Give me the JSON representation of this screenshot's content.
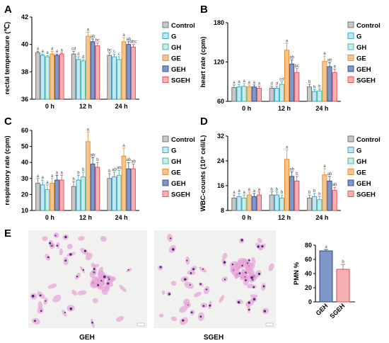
{
  "legend": [
    "Control",
    "G",
    "GH",
    "GE",
    "GEH",
    "SGEH"
  ],
  "colors": {
    "fills": [
      "#c8c8c8",
      "#bfe8f4",
      "#c8ece6",
      "#f7c48e",
      "#7f97c8",
      "#f5b0b3"
    ],
    "strokes": [
      "#6d6d6d",
      "#2aa2c8",
      "#3bb3a2",
      "#e48a2c",
      "#2f4a8c",
      "#e04a55"
    ]
  },
  "panels": [
    {
      "letter": "A"
    },
    {
      "letter": "B"
    },
    {
      "letter": "C"
    },
    {
      "letter": "D"
    },
    {
      "letter": "E"
    }
  ],
  "micrographs": {
    "left_label": "GEH",
    "right_label": "SGEH"
  },
  "chart_data": [
    {
      "type": "bar",
      "panel": "A",
      "ylabel": "rectal temperature (℃)",
      "ylim": [
        36,
        42
      ],
      "yticks": [
        36,
        38,
        40,
        42
      ],
      "categories": [
        "0 h",
        "12 h",
        "24 h"
      ],
      "series": [
        {
          "name": "Control",
          "values": [
            39.4,
            39.3,
            39.2
          ],
          "errors": [
            0.1,
            0.2,
            0.2
          ],
          "labels": [
            "a",
            "cd",
            "bc"
          ]
        },
        {
          "name": "G",
          "values": [
            39.2,
            38.9,
            39.1
          ],
          "errors": [
            0.1,
            0.2,
            0.2
          ],
          "labels": [
            "a",
            "d",
            "c"
          ]
        },
        {
          "name": "GH",
          "values": [
            39.1,
            38.8,
            38.9
          ],
          "errors": [
            0.1,
            0.1,
            0.2
          ],
          "labels": [
            "a",
            "d",
            "c"
          ]
        },
        {
          "name": "GE",
          "values": [
            39.3,
            40.6,
            40.2
          ],
          "errors": [
            0.2,
            0.3,
            0.3
          ],
          "labels": [
            "a",
            "a",
            "a"
          ]
        },
        {
          "name": "GEH",
          "values": [
            39.2,
            40.2,
            40.0
          ],
          "errors": [
            0.1,
            0.2,
            0.2
          ],
          "labels": [
            "a",
            "ab",
            "ab"
          ]
        },
        {
          "name": "SGEH",
          "values": [
            39.3,
            39.9,
            39.8
          ],
          "errors": [
            0.1,
            0.2,
            0.2
          ],
          "labels": [
            "a",
            "bc",
            "abc"
          ]
        }
      ]
    },
    {
      "type": "bar",
      "panel": "B",
      "ylabel": "heart rate (cpm)",
      "ylim": [
        60,
        180
      ],
      "yticks": [
        60,
        120,
        180
      ],
      "categories": [
        "0 h",
        "12 h",
        "24 h"
      ],
      "series": [
        {
          "name": "Control",
          "values": [
            81,
            80,
            82
          ],
          "errors": [
            4,
            3,
            4
          ],
          "labels": [
            "a",
            "d",
            "b"
          ]
        },
        {
          "name": "G",
          "values": [
            82,
            80,
            75
          ],
          "errors": [
            4,
            3,
            3
          ],
          "labels": [
            "a",
            "d",
            "b"
          ]
        },
        {
          "name": "GH",
          "values": [
            83,
            86,
            76
          ],
          "errors": [
            4,
            4,
            3
          ],
          "labels": [
            "a",
            "cd",
            "b"
          ]
        },
        {
          "name": "GE",
          "values": [
            82,
            138,
            121
          ],
          "errors": [
            3,
            10,
            8
          ],
          "labels": [
            "a",
            "a",
            "a"
          ]
        },
        {
          "name": "GEH",
          "values": [
            82,
            117,
            113
          ],
          "errors": [
            3,
            6,
            6
          ],
          "labels": [
            "a",
            "ab",
            "ab"
          ]
        },
        {
          "name": "SGEH",
          "values": [
            80,
            104,
            104
          ],
          "errors": [
            3,
            6,
            5
          ],
          "labels": [
            "a",
            "bc",
            "a"
          ]
        }
      ]
    },
    {
      "type": "bar",
      "panel": "C",
      "ylabel": "respiratory rate (cpm)",
      "ylim": [
        10,
        60
      ],
      "yticks": [
        10,
        20,
        30,
        40,
        50,
        60
      ],
      "categories": [
        "0 h",
        "12 h",
        "24 h"
      ],
      "series": [
        {
          "name": "Control",
          "values": [
            27,
            25,
            30
          ],
          "errors": [
            3,
            3,
            3
          ],
          "labels": [
            "a",
            "b",
            "b"
          ]
        },
        {
          "name": "G",
          "values": [
            26,
            29,
            31
          ],
          "errors": [
            3,
            3,
            3
          ],
          "labels": [
            "a",
            "b",
            "ab"
          ]
        },
        {
          "name": "GH",
          "values": [
            23,
            31,
            32
          ],
          "errors": [
            3,
            3,
            3
          ],
          "labels": [
            "a",
            "b",
            "ab"
          ]
        },
        {
          "name": "GE",
          "values": [
            27,
            53,
            44
          ],
          "errors": [
            3,
            6,
            5
          ],
          "labels": [
            "a",
            "a",
            "a"
          ]
        },
        {
          "name": "GEH",
          "values": [
            29,
            39,
            36
          ],
          "errors": [
            3,
            4,
            4
          ],
          "labels": [
            "a",
            "ab",
            "ab"
          ]
        },
        {
          "name": "SGEH",
          "values": [
            29,
            37,
            36
          ],
          "errors": [
            3,
            3,
            3
          ],
          "labels": [
            "a",
            "b",
            "ab"
          ]
        }
      ]
    },
    {
      "type": "bar",
      "panel": "D",
      "ylabel": "WBC-counts (10⁹ cell/L)",
      "ylim": [
        8,
        32
      ],
      "yticks": [
        8,
        16,
        24,
        32
      ],
      "categories": [
        "0 h",
        "12 h",
        "24 h"
      ],
      "series": [
        {
          "name": "Control",
          "values": [
            12,
            13,
            12
          ],
          "errors": [
            1,
            1,
            1
          ],
          "labels": [
            "a",
            "b",
            "b"
          ]
        },
        {
          "name": "G",
          "values": [
            12.5,
            13,
            12.5
          ],
          "errors": [
            1,
            1,
            1
          ],
          "labels": [
            "a",
            "b",
            "b"
          ]
        },
        {
          "name": "GH",
          "values": [
            12,
            12,
            11.5
          ],
          "errors": [
            1,
            1,
            1
          ],
          "labels": [
            "a",
            "b",
            "b"
          ]
        },
        {
          "name": "GE",
          "values": [
            13,
            24.5,
            19.5
          ],
          "errors": [
            1,
            3,
            2
          ],
          "labels": [
            "a",
            "a",
            "a"
          ]
        },
        {
          "name": "GEH",
          "values": [
            12.5,
            19,
            17.5
          ],
          "errors": [
            1,
            1.5,
            1.5
          ],
          "labels": [
            "a",
            "ab",
            "ab"
          ]
        },
        {
          "name": "SGEH",
          "values": [
            13,
            17.5,
            14.5
          ],
          "errors": [
            1,
            1.5,
            1
          ],
          "labels": [
            "a",
            "b",
            "ab"
          ]
        }
      ]
    },
    {
      "type": "bar",
      "panel": "E",
      "ylabel": "PMN %",
      "ylim": [
        0,
        80
      ],
      "yticks": [
        0,
        20,
        40,
        60,
        80
      ],
      "categories": [
        "GEH",
        "SGEH"
      ],
      "series": [
        {
          "name": "PMN %",
          "values": [
            72,
            46
          ],
          "errors": [
            2,
            7
          ],
          "labels": [
            "a",
            "b"
          ]
        }
      ]
    }
  ]
}
